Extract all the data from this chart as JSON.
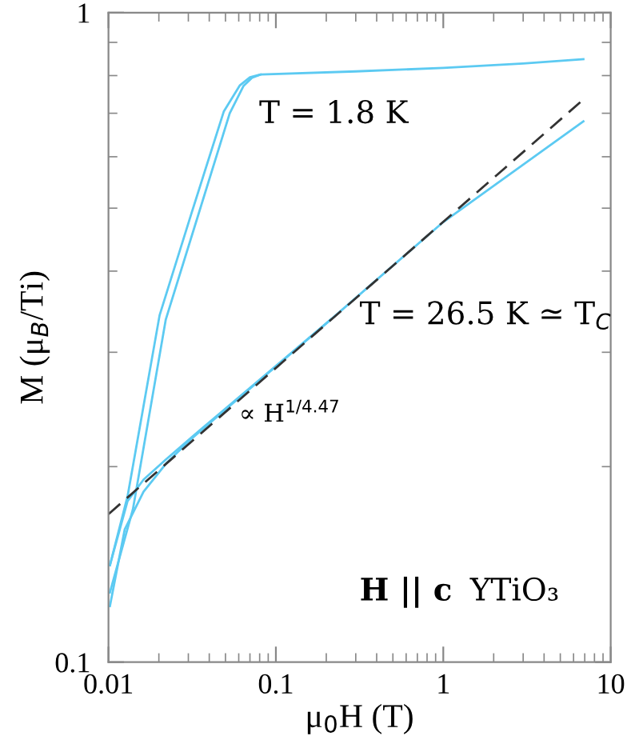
{
  "chart_data": {
    "type": "line",
    "xlabel": "μ$_{0}$H (T)",
    "ylabel": "M (μ$_{B}$/Ti)",
    "log": "xy",
    "xlim": [
      0.01,
      10
    ],
    "ylim": [
      0.1,
      1
    ],
    "xticks": [
      0.01,
      0.1,
      1,
      10
    ],
    "yticks": [
      0.1,
      1
    ],
    "grid": false,
    "legend": false,
    "marker": "none",
    "series": [
      {
        "color": "#5ccaf2",
        "line_style": "solid",
        "x": [
          0.0102,
          0.013,
          0.0202,
          0.0314,
          0.0488,
          0.061,
          0.07,
          0.081,
          0.3,
          1,
          3,
          6.87
        ],
        "values": [
          0.141,
          0.18,
          0.342,
          0.492,
          0.704,
          0.773,
          0.795,
          0.803,
          0.812,
          0.822,
          0.835,
          0.848
        ]
      },
      {
        "color": "#5ccaf2",
        "line_style": "solid",
        "x": [
          0.0102,
          0.014,
          0.022,
          0.0342,
          0.053,
          0.064,
          0.072,
          0.081
        ],
        "values": [
          0.128,
          0.172,
          0.337,
          0.486,
          0.7,
          0.771,
          0.794,
          0.803
        ]
      },
      {
        "color": "#5ccaf2",
        "line_style": "solid",
        "x": [
          0.0102,
          0.013,
          0.0162,
          0.022,
          0.0314,
          0.213,
          1,
          6.87
        ],
        "values": [
          0.141,
          0.177,
          0.191,
          0.205,
          0.222,
          0.337,
          0.476,
          0.68
        ]
      },
      {
        "color": "#5ccaf2",
        "line_style": "solid",
        "x": [
          0.0102,
          0.0125,
          0.0162,
          0.022,
          0.0314,
          0.213
        ],
        "values": [
          0.122,
          0.16,
          0.183,
          0.202,
          0.221,
          0.337
        ]
      },
      {
        "color": "#333333",
        "line_style": "dashed",
        "x": [
          0.01,
          6.58
        ],
        "values": [
          0.169,
          0.728
        ]
      }
    ],
    "annotations": [
      "T = 1.8 K",
      "T = 26.5 K ≃ T$_{C}$",
      "∝ H$^{1/4.47}$",
      "H || c",
      "YTiO₃"
    ]
  }
}
